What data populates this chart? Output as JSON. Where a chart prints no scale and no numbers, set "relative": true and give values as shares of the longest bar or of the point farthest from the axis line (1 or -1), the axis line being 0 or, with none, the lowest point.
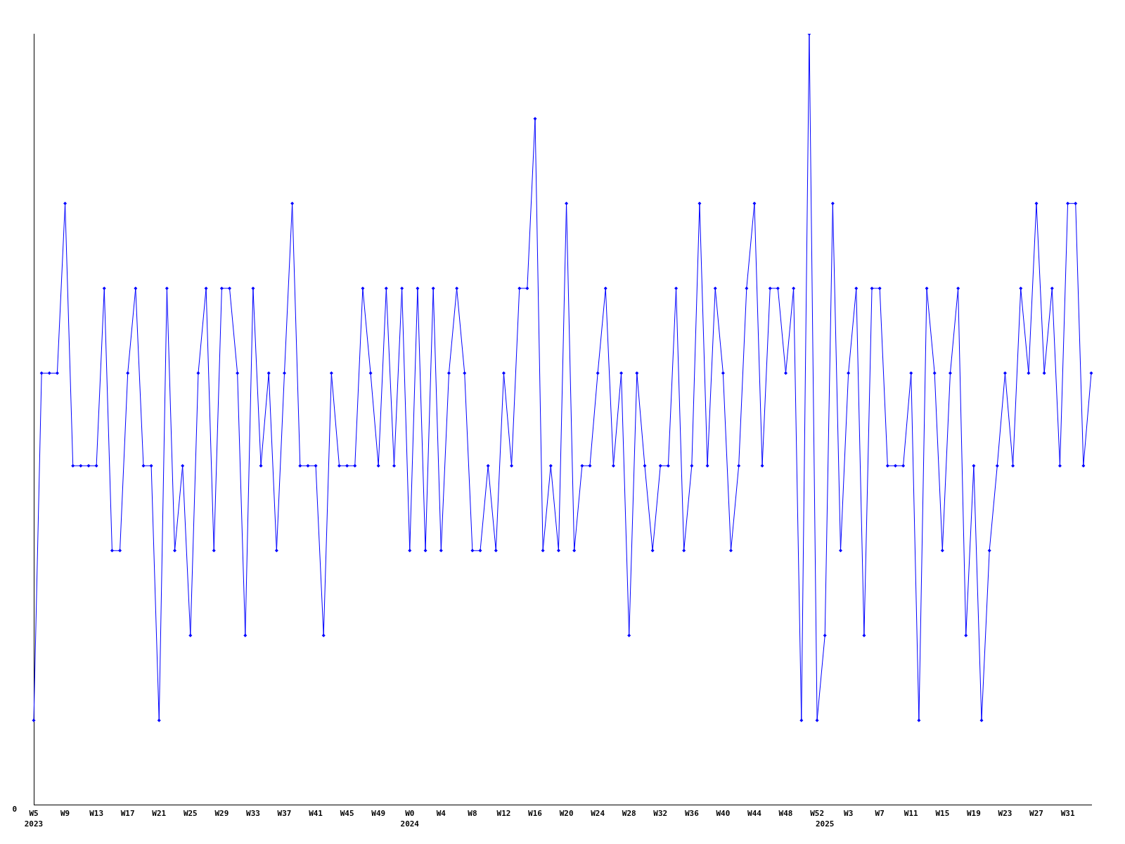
{
  "chart_data": {
    "type": "line",
    "relative": true,
    "categories": [
      "W5",
      null,
      null,
      null,
      "W9",
      null,
      null,
      null,
      "W13",
      null,
      null,
      null,
      "W17",
      null,
      null,
      null,
      "W21",
      null,
      null,
      null,
      "W25",
      null,
      null,
      null,
      "W29",
      null,
      null,
      null,
      "W33",
      null,
      null,
      null,
      "W37",
      null,
      null,
      null,
      "W41",
      null,
      null,
      null,
      "W45",
      null,
      null,
      null,
      "W49",
      null,
      null,
      null,
      "W0",
      null,
      null,
      null,
      "W4",
      null,
      null,
      null,
      "W8",
      null,
      null,
      null,
      "W12",
      null,
      null,
      null,
      "W16",
      null,
      null,
      null,
      "W20",
      null,
      null,
      null,
      "W24",
      null,
      null,
      null,
      "W28",
      null,
      null,
      null,
      "W32",
      null,
      null,
      null,
      "W36",
      null,
      null,
      null,
      "W40",
      null,
      null,
      null,
      "W44",
      null,
      null,
      null,
      "W48",
      null,
      null,
      null,
      "W52",
      null,
      null,
      null,
      "W3",
      null,
      null,
      null,
      "W7",
      null,
      null,
      null,
      "W11",
      null,
      null,
      null,
      "W15",
      null,
      null,
      null,
      "W19",
      null,
      null,
      null,
      "W23",
      null,
      null,
      null,
      "W27",
      null,
      null,
      null,
      "W31",
      null,
      null,
      null
    ],
    "series": [
      {
        "color": "#0000ff",
        "values": [
          0.11,
          0.56,
          0.56,
          0.56,
          0.78,
          0.44,
          0.44,
          0.44,
          0.44,
          0.67,
          0.33,
          0.33,
          0.56,
          0.67,
          0.44,
          0.44,
          0.11,
          0.67,
          0.33,
          0.44,
          0.22,
          0.56,
          0.67,
          0.33,
          0.67,
          0.67,
          0.56,
          0.22,
          0.67,
          0.44,
          0.56,
          0.33,
          0.56,
          0.78,
          0.44,
          0.44,
          0.44,
          0.22,
          0.56,
          0.44,
          0.44,
          0.44,
          0.67,
          0.56,
          0.44,
          0.67,
          0.44,
          0.67,
          0.33,
          0.67,
          0.33,
          0.67,
          0.33,
          0.56,
          0.67,
          0.56,
          0.33,
          0.33,
          0.44,
          0.33,
          0.56,
          0.44,
          0.67,
          0.67,
          0.89,
          0.33,
          0.44,
          0.33,
          0.78,
          0.33,
          0.44,
          0.44,
          0.56,
          0.67,
          0.44,
          0.56,
          0.22,
          0.56,
          0.44,
          0.33,
          0.44,
          0.44,
          0.67,
          0.33,
          0.44,
          0.78,
          0.44,
          0.67,
          0.56,
          0.33,
          0.44,
          0.67,
          0.78,
          0.44,
          0.67,
          0.67,
          0.56,
          0.67,
          0.11,
          1,
          0.11,
          0.22,
          0.78,
          0.33,
          0.56,
          0.67,
          0.22,
          0.67,
          0.67,
          0.44,
          0.44,
          0.44,
          0.56,
          0.11,
          0.67,
          0.56,
          0.33,
          0.56,
          0.67,
          0.22,
          0.44,
          0.11,
          0.33,
          0.44,
          0.56,
          0.44,
          0.67,
          0.56,
          0.78,
          0.56,
          0.67,
          0.44,
          0.78,
          0.78,
          0.44,
          0.56
        ]
      }
    ],
    "marker": "diamond",
    "line_style": "solid",
    "grid": false,
    "legend": false,
    "annotations": [
      "2023",
      "2024",
      "2025",
      "0"
    ]
  }
}
